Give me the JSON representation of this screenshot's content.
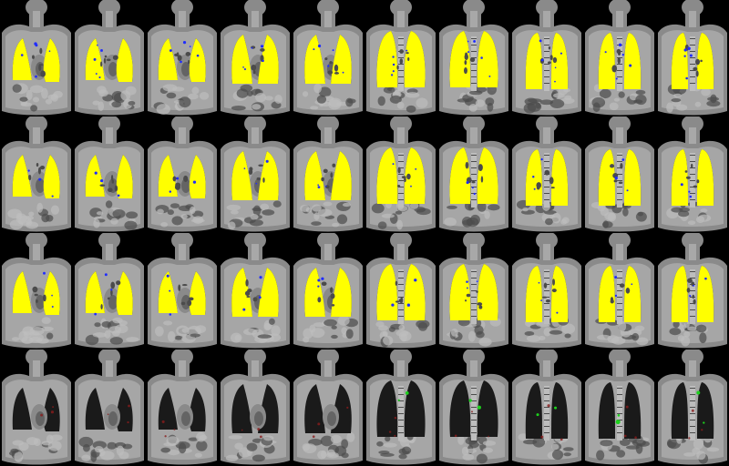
{
  "montage": {
    "rows": [
      {
        "id": "row-1",
        "overlay": "yellow",
        "blue_specks": "high"
      },
      {
        "id": "row-2",
        "overlay": "yellow",
        "blue_specks": "medium"
      },
      {
        "id": "row-3",
        "overlay": "yellow",
        "blue_specks": "medium"
      },
      {
        "id": "row-4",
        "overlay": "none",
        "green_specks": true,
        "red_specks": true
      }
    ],
    "columns": [
      {
        "lung_shape": "heart-dominant"
      },
      {
        "lung_shape": "heart-dominant"
      },
      {
        "lung_shape": "heart-dominant"
      },
      {
        "lung_shape": "mixed"
      },
      {
        "lung_shape": "mixed"
      },
      {
        "lung_shape": "wide"
      },
      {
        "lung_shape": "wide"
      },
      {
        "lung_shape": "spine"
      },
      {
        "lung_shape": "spine"
      },
      {
        "lung_shape": "spine"
      }
    ]
  },
  "colors": {
    "background": "#000000",
    "tissue_light": "#bdbdbd",
    "tissue_mid": "#8a8a8a",
    "tissue_dark": "#4b4b4b",
    "lung_dark": "#1a1a1a",
    "overlay_yellow": "#ffff00",
    "speck_blue": "#1f2cff",
    "speck_green": "#1dd11d",
    "speck_red": "#8a1c1c"
  }
}
